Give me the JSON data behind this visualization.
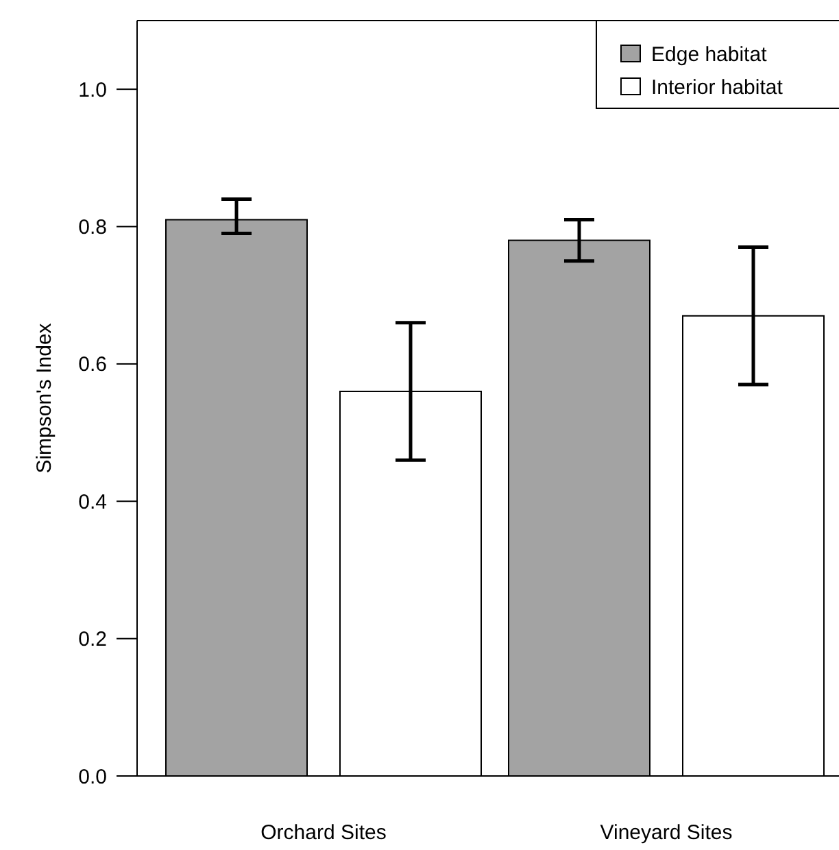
{
  "chart_data": {
    "type": "bar",
    "ylabel": "Simpson's Index",
    "categories": [
      "Orchard Sites",
      "Vineyard Sites"
    ],
    "series": [
      {
        "name": "Edge habitat",
        "color": "#a3a3a3",
        "values": [
          0.81,
          0.78
        ],
        "errors": [
          [
            0.79,
            0.84
          ],
          [
            0.75,
            0.81
          ]
        ]
      },
      {
        "name": "Interior habitat",
        "color": "#ffffff",
        "values": [
          0.56,
          0.67
        ],
        "errors": [
          [
            0.46,
            0.66
          ],
          [
            0.57,
            0.77
          ]
        ]
      }
    ],
    "ylim": [
      0,
      1.1
    ],
    "yticks": [
      {
        "value": 0,
        "label": "0.0"
      },
      0.2,
      0.4,
      0.6,
      {
        "value": 1,
        "label": "1.0"
      },
      0.8
    ],
    "legend": "top right",
    "grid": false
  }
}
